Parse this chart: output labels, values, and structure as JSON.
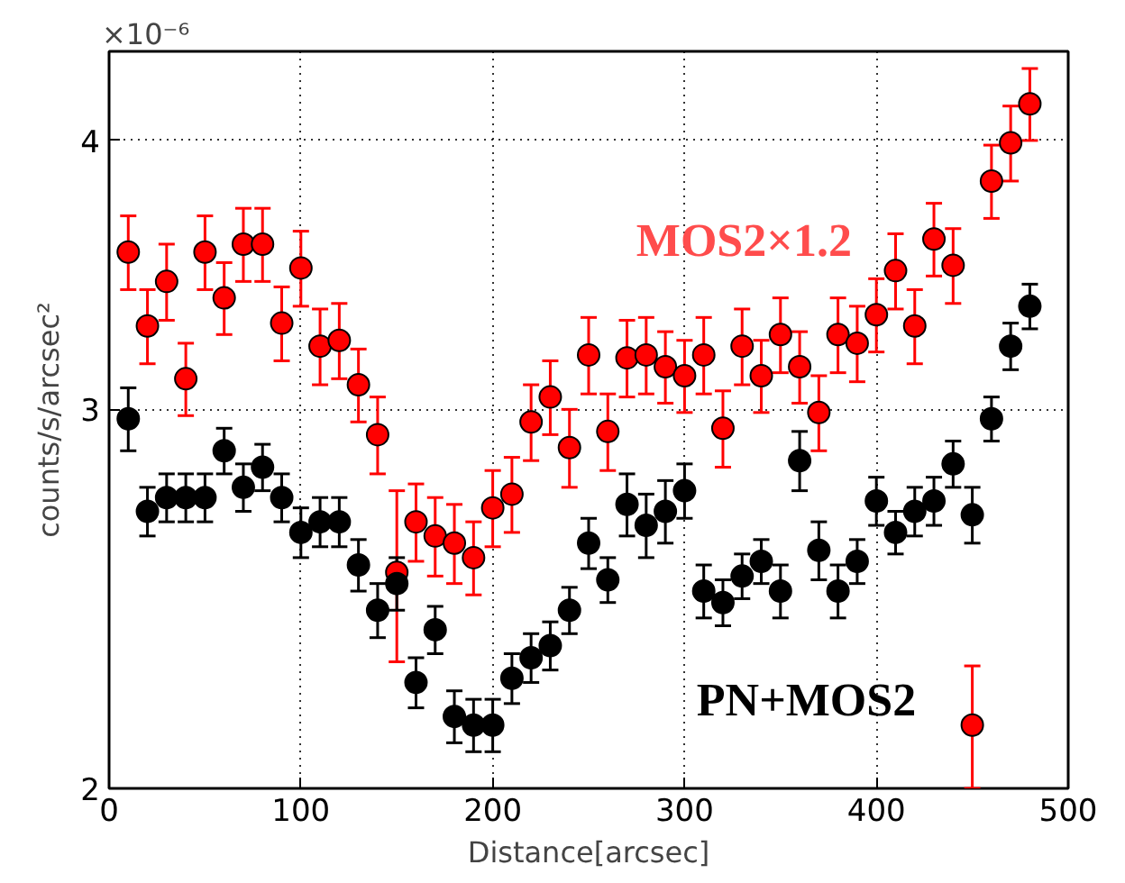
{
  "chart_data": {
    "type": "scatter",
    "xlabel": "Distance[arcsec]",
    "ylabel": "counts/s/arcsec²",
    "x": [
      10,
      20,
      30,
      40,
      50,
      60,
      70,
      80,
      90,
      100,
      110,
      120,
      130,
      140,
      150,
      160,
      170,
      180,
      190,
      200,
      210,
      220,
      230,
      240,
      250,
      260,
      270,
      280,
      290,
      300,
      310,
      320,
      330,
      340,
      350,
      360,
      370,
      380,
      390,
      400,
      410,
      420,
      430,
      440,
      450,
      460,
      470,
      480
    ],
    "series": [
      {
        "name": "MOS2×1.2",
        "color": "#ff0000",
        "values": [
          3.55,
          3.28,
          3.44,
          3.1,
          3.55,
          3.38,
          3.58,
          3.58,
          3.29,
          3.49,
          3.21,
          3.23,
          3.08,
          2.92,
          2.52,
          2.66,
          2.62,
          2.6,
          2.56,
          2.7,
          2.74,
          2.96,
          3.04,
          2.88,
          3.18,
          2.93,
          3.17,
          3.18,
          3.14,
          3.11,
          3.18,
          2.94,
          3.21,
          3.11,
          3.25,
          3.14,
          2.99,
          3.25,
          3.22,
          3.32,
          3.48,
          3.28,
          3.6,
          3.5,
          2.14,
          3.83,
          3.99,
          4.16
        ],
        "errors": [
          0.14,
          0.13,
          0.14,
          0.12,
          0.14,
          0.13,
          0.14,
          0.14,
          0.13,
          0.14,
          0.13,
          0.13,
          0.12,
          0.12,
          0.23,
          0.11,
          0.11,
          0.11,
          0.1,
          0.11,
          0.11,
          0.12,
          0.12,
          0.12,
          0.13,
          0.12,
          0.13,
          0.13,
          0.12,
          0.12,
          0.13,
          0.12,
          0.13,
          0.12,
          0.13,
          0.12,
          0.12,
          0.13,
          0.13,
          0.13,
          0.14,
          0.13,
          0.14,
          0.14,
          0.14,
          0.15,
          0.16,
          0.16
        ]
      },
      {
        "name": "PN+MOS2",
        "color": "#000000",
        "values": [
          2.97,
          2.69,
          2.73,
          2.73,
          2.73,
          2.87,
          2.76,
          2.82,
          2.73,
          2.63,
          2.66,
          2.66,
          2.54,
          2.42,
          2.49,
          2.24,
          2.37,
          2.16,
          2.14,
          2.14,
          2.25,
          2.3,
          2.33,
          2.42,
          2.6,
          2.5,
          2.71,
          2.65,
          2.69,
          2.75,
          2.47,
          2.44,
          2.51,
          2.55,
          2.47,
          2.84,
          2.58,
          2.47,
          2.55,
          2.72,
          2.63,
          2.69,
          2.72,
          2.83,
          2.68,
          2.97,
          3.21,
          3.35
        ],
        "errors": [
          0.1,
          0.07,
          0.07,
          0.07,
          0.07,
          0.07,
          0.07,
          0.07,
          0.07,
          0.07,
          0.07,
          0.07,
          0.07,
          0.07,
          0.07,
          0.06,
          0.06,
          0.06,
          0.06,
          0.06,
          0.06,
          0.06,
          0.06,
          0.06,
          0.07,
          0.06,
          0.09,
          0.09,
          0.09,
          0.08,
          0.07,
          0.06,
          0.06,
          0.06,
          0.07,
          0.09,
          0.08,
          0.07,
          0.06,
          0.07,
          0.06,
          0.07,
          0.07,
          0.07,
          0.08,
          0.07,
          0.08,
          0.08
        ]
      }
    ],
    "annotations": [
      "×10⁻⁶"
    ],
    "xlim": [
      0,
      500
    ],
    "xticks": [
      0,
      100,
      200,
      300,
      400,
      500
    ],
    "ylim": [
      2,
      4.4
    ],
    "yticks": [
      2,
      3,
      4
    ],
    "log": "y",
    "grid": true,
    "marker": "circle"
  }
}
